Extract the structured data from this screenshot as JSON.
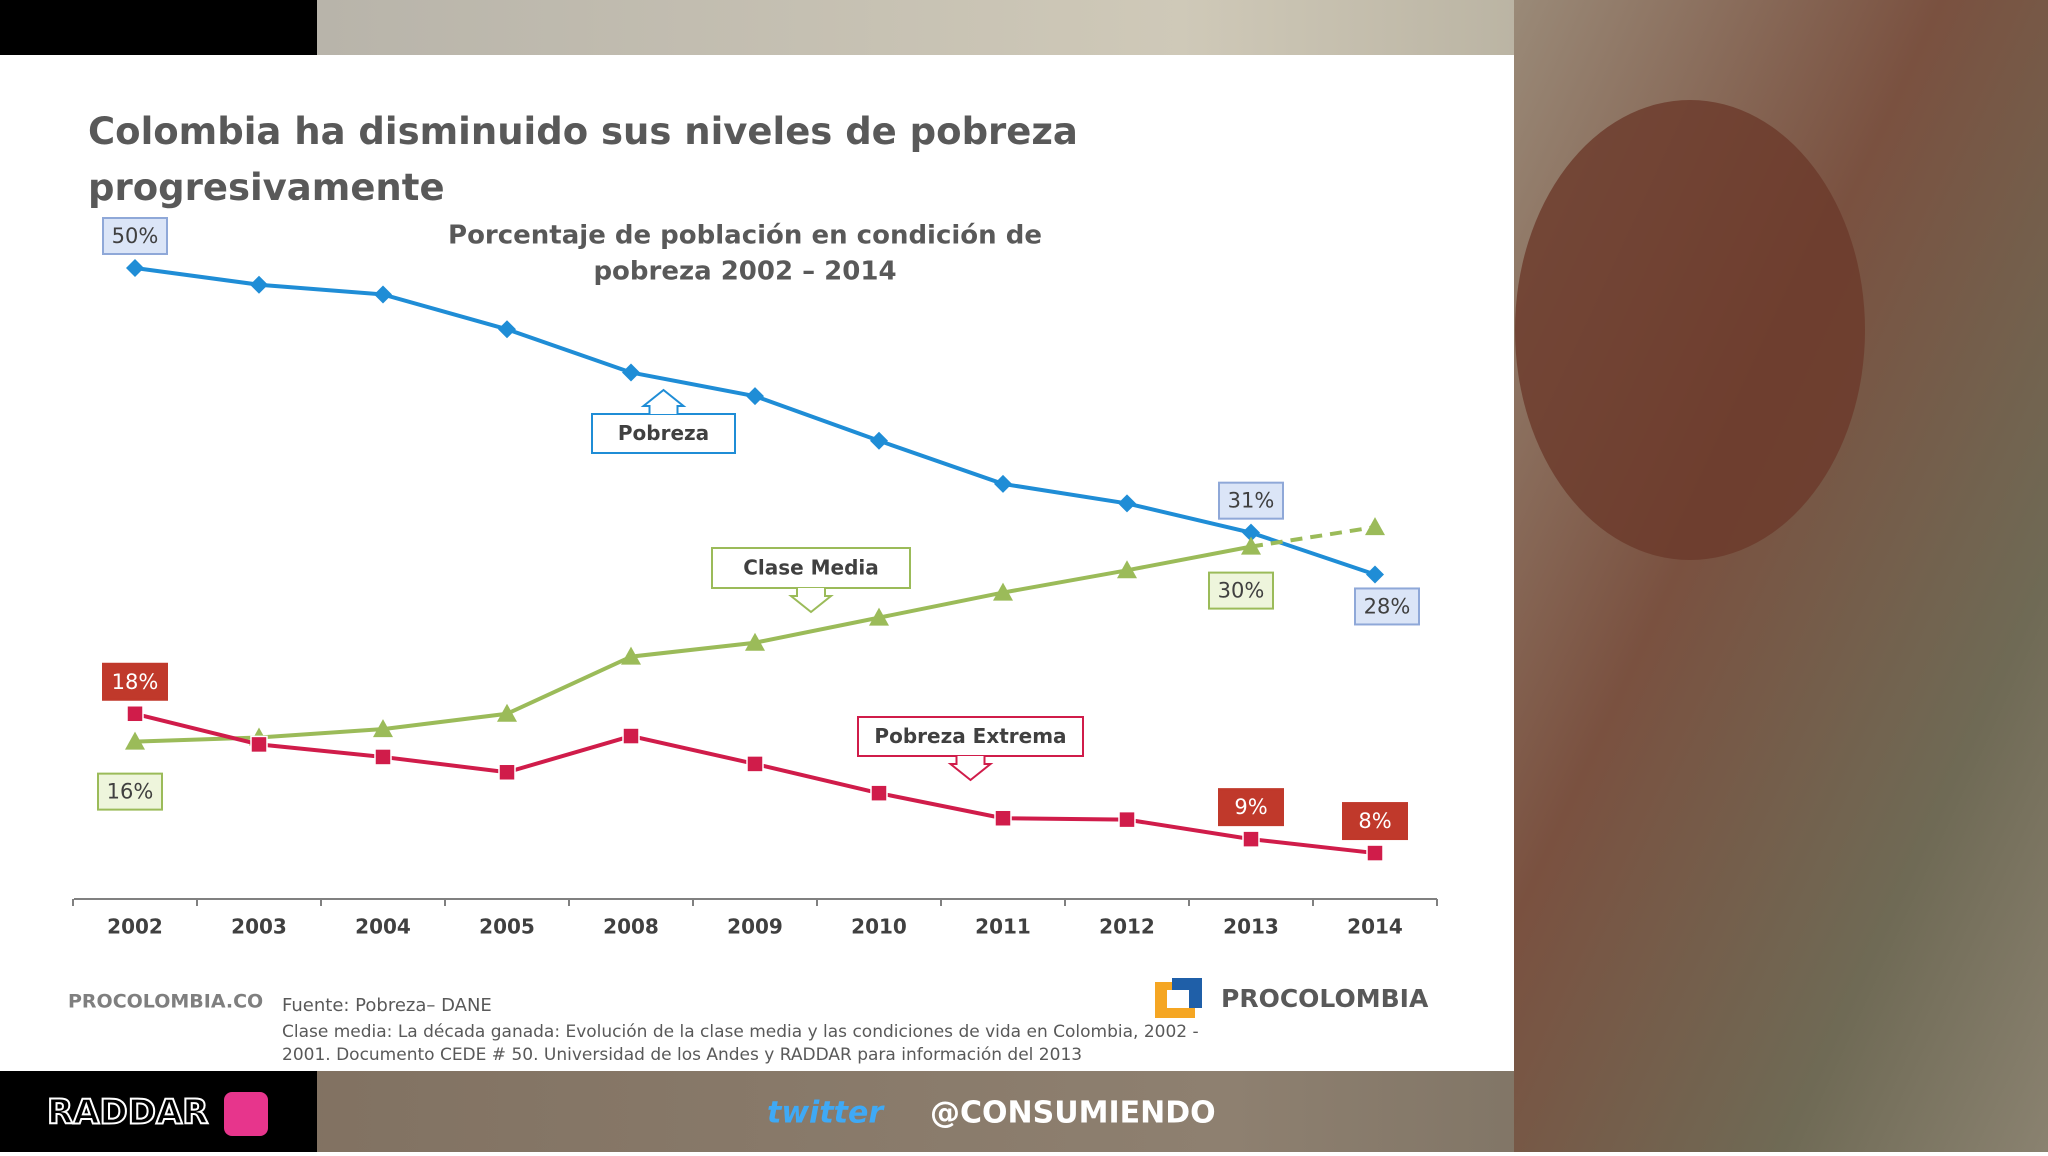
{
  "chart_data": {
    "type": "line",
    "title": "Colombia ha disminuido sus niveles de pobreza progresivamente",
    "subtitle": [
      "Porcentaje de población en condición de",
      "pobreza 2002 – 2014"
    ],
    "categories": [
      "2002",
      "2003",
      "2004",
      "2005",
      "2008",
      "2009",
      "2010",
      "2011",
      "2012",
      "2013",
      "2014"
    ],
    "series": [
      {
        "name": "Pobreza",
        "color": "#1f8dd6",
        "marker": "diamond",
        "values": [
          50,
          48.8,
          48.1,
          45.6,
          42.5,
          40.8,
          37.6,
          34.5,
          33.1,
          31,
          28
        ],
        "value_labels": [
          "50%",
          null,
          null,
          null,
          null,
          null,
          null,
          null,
          null,
          "31%",
          "28%"
        ]
      },
      {
        "name": "Clase Media",
        "color": "#9bbb59",
        "marker": "triangle",
        "dash_from_index": 9,
        "values": [
          16,
          16.3,
          16.9,
          18,
          22.1,
          23.1,
          24.9,
          26.7,
          28.3,
          30,
          31.4
        ],
        "value_labels": [
          "16%",
          null,
          null,
          null,
          null,
          null,
          null,
          null,
          null,
          "30%",
          null
        ]
      },
      {
        "name": "Pobreza Extrema",
        "color": "#d01c4a",
        "marker": "square",
        "values": [
          18,
          15.8,
          14.9,
          13.8,
          16.4,
          14.4,
          12.3,
          10.5,
          10.4,
          9,
          8
        ],
        "value_labels": [
          "18%",
          null,
          null,
          null,
          null,
          null,
          null,
          null,
          null,
          "9%",
          "8%"
        ]
      }
    ],
    "source": [
      "Fuente: Pobreza– DANE",
      "Clase media: La década ganada: Evolución de la clase media y las condiciones de vida en Colombia, 2002 -",
      "2001. Documento CEDE # 50. Universidad de los Andes y RADDAR para información del  2013"
    ]
  },
  "branding": {
    "site": "PROCOLOMBIA.CO",
    "logo": "PROCOLOMBIA",
    "company": "RADDAR",
    "twitter": "twitter",
    "handle": "@CONSUMIENDO"
  }
}
